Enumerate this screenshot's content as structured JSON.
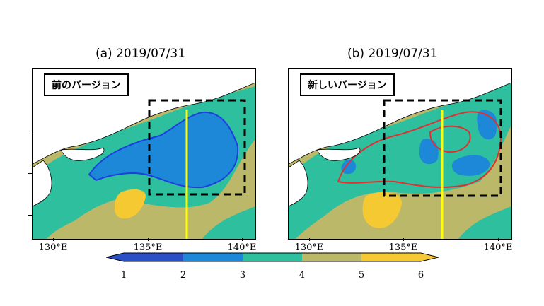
{
  "panels": [
    {
      "title": "(a) 2019/07/31",
      "label": "前のバージョン"
    },
    {
      "title": "(b) 2019/07/31",
      "label": "新しいバージョン"
    }
  ],
  "lon_ticks_a": [
    "130°E",
    "135°E",
    "140°E"
  ],
  "lon_ticks_b": [
    "130°E",
    "135°E",
    "140°E"
  ],
  "colorbar": {
    "ticks": [
      "1",
      "2",
      "3",
      "4",
      "5",
      "6"
    ],
    "colors": [
      "#2b4fc4",
      "#1e88d8",
      "#2ebf9f",
      "#bcb86a",
      "#f5c932"
    ]
  },
  "colors": {
    "dashed_box": "#000000",
    "meridian_line": "#ffff00",
    "contour_a": "#1e3fe0",
    "contour_b": "#e03030"
  }
}
